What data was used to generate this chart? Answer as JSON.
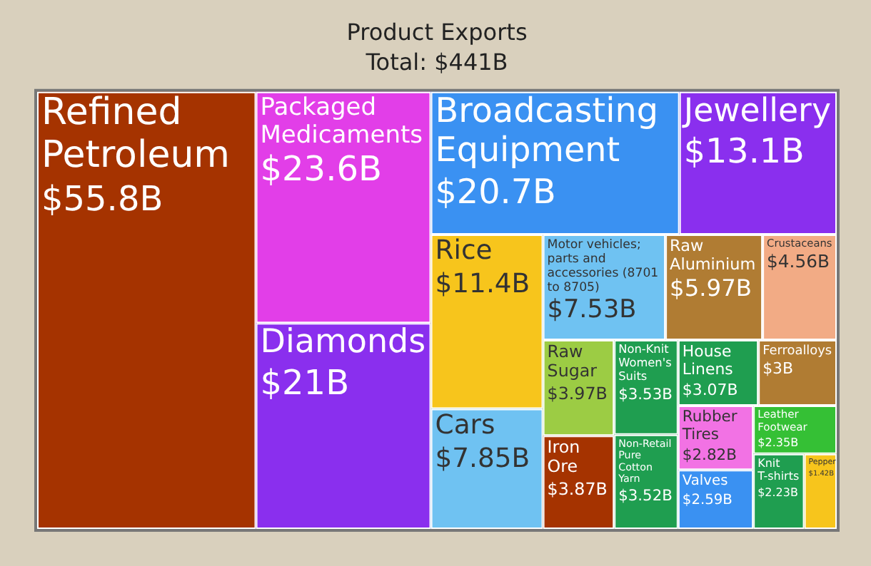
{
  "chart_data": {
    "type": "other",
    "title": "Product Exports",
    "subtitle": "Total: $441B",
    "categories": [
      "Refined Petroleum",
      "Packaged Medicaments",
      "Diamonds",
      "Broadcasting Equipment",
      "Jewellery",
      "Rice",
      "Cars",
      "Motor vehicles; parts and accessories (8701 to 8705)",
      "Raw Aluminium",
      "Crustaceans",
      "Raw Sugar",
      "Iron Ore",
      "Non-Knit Women's Suits",
      "Non-Retail Pure Cotton Yarn",
      "House Linens",
      "Ferroalloys",
      "Rubber Tires",
      "Valves",
      "Leather Footwear",
      "Knit T-shirts",
      "Pepper"
    ],
    "values": [
      55.8,
      23.6,
      21,
      20.7,
      13.1,
      11.4,
      7.85,
      7.53,
      5.97,
      4.56,
      3.97,
      3.87,
      3.53,
      3.52,
      3.07,
      3,
      2.82,
      2.59,
      2.35,
      2.23,
      1.42
    ],
    "value_labels": [
      "$55.8B",
      "$23.6B",
      "$21B",
      "$20.7B",
      "$13.1B",
      "$11.4B",
      "$7.85B",
      "$7.53B",
      "$5.97B",
      "$4.56B",
      "$3.97B",
      "$3.87B",
      "$3.53B",
      "$3.52B",
      "$3.07B",
      "$3B",
      "$2.82B",
      "$2.59B",
      "$2.35B",
      "$2.23B",
      "$1.42B"
    ],
    "colors": [
      "#a53300",
      "#e23ee8",
      "#8a2fee",
      "#3a91f2",
      "#8a2fee",
      "#f7c51c",
      "#6fc2f2",
      "#6fc2f2",
      "#b07c33",
      "#f2ab85",
      "#9ccc44",
      "#a53300",
      "#1f9e50",
      "#1f9e50",
      "#1f9e50",
      "#b07c33",
      "#f272e4",
      "#3a91f2",
      "#35c035",
      "#1f9e50",
      "#f7c51c"
    ]
  }
}
